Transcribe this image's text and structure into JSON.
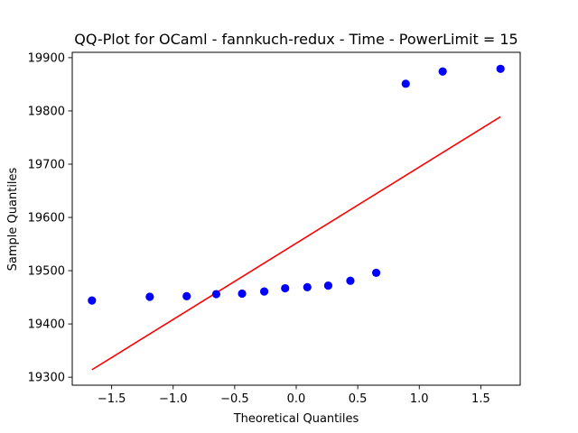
{
  "chart_data": {
    "type": "scatter",
    "title": "QQ-Plot for OCaml - fannkuch-redux - Time - PowerLimit = 15",
    "xlabel": "Theoretical Quantiles",
    "ylabel": "Sample Quantiles",
    "xlim": [
      -1.82,
      1.82
    ],
    "ylim": [
      19285,
      19910
    ],
    "xticks": [
      -1.5,
      -1.0,
      -0.5,
      0.0,
      0.5,
      1.0,
      1.5
    ],
    "xtick_labels": [
      "−1.5",
      "−1.0",
      "−0.5",
      "0.0",
      "0.5",
      "1.0",
      "1.5"
    ],
    "yticks": [
      19300,
      19400,
      19500,
      19600,
      19700,
      19800,
      19900
    ],
    "ytick_labels": [
      "19300",
      "19400",
      "19500",
      "19600",
      "19700",
      "19800",
      "19900"
    ],
    "grid": false,
    "points": {
      "color": "#0000ff",
      "x": [
        -1.66,
        -1.19,
        -0.89,
        -0.65,
        -0.44,
        -0.26,
        -0.09,
        0.09,
        0.26,
        0.44,
        0.65,
        0.89,
        1.19,
        1.66
      ],
      "y": [
        19444,
        19451,
        19452,
        19456,
        19457,
        19461,
        19467,
        19469,
        19472,
        19481,
        19496,
        19851,
        19874,
        19879
      ]
    },
    "reference_line": {
      "color": "#ff0000",
      "x": [
        -1.66,
        1.66
      ],
      "y": [
        19314,
        19789
      ]
    }
  }
}
